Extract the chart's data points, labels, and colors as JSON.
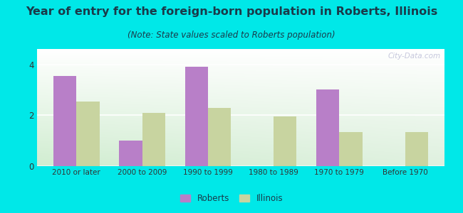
{
  "title": "Year of entry for the foreign-born population in Roberts, Illinois",
  "subtitle": "(Note: State values scaled to Roberts population)",
  "categories": [
    "2010 or later",
    "2000 to 2009",
    "1990 to 1999",
    "1980 to 1989",
    "1970 to 1979",
    "Before 1970"
  ],
  "roberts_values": [
    3.55,
    1.0,
    3.9,
    0.0,
    3.0,
    0.0
  ],
  "illinois_values": [
    2.55,
    2.1,
    2.3,
    1.95,
    1.35,
    1.35
  ],
  "roberts_color": "#b87fc8",
  "illinois_color": "#c8d4a0",
  "background_outer": "#00e8e8",
  "ylim": [
    0,
    4.6
  ],
  "yticks": [
    0,
    2,
    4
  ],
  "bar_width": 0.35,
  "legend_roberts": "Roberts",
  "legend_illinois": "Illinois",
  "title_fontsize": 11.5,
  "subtitle_fontsize": 8.5,
  "title_color": "#1a3a4a",
  "subtitle_color": "#1a3a4a",
  "tick_color": "#333333",
  "watermark": "City-Data.com"
}
